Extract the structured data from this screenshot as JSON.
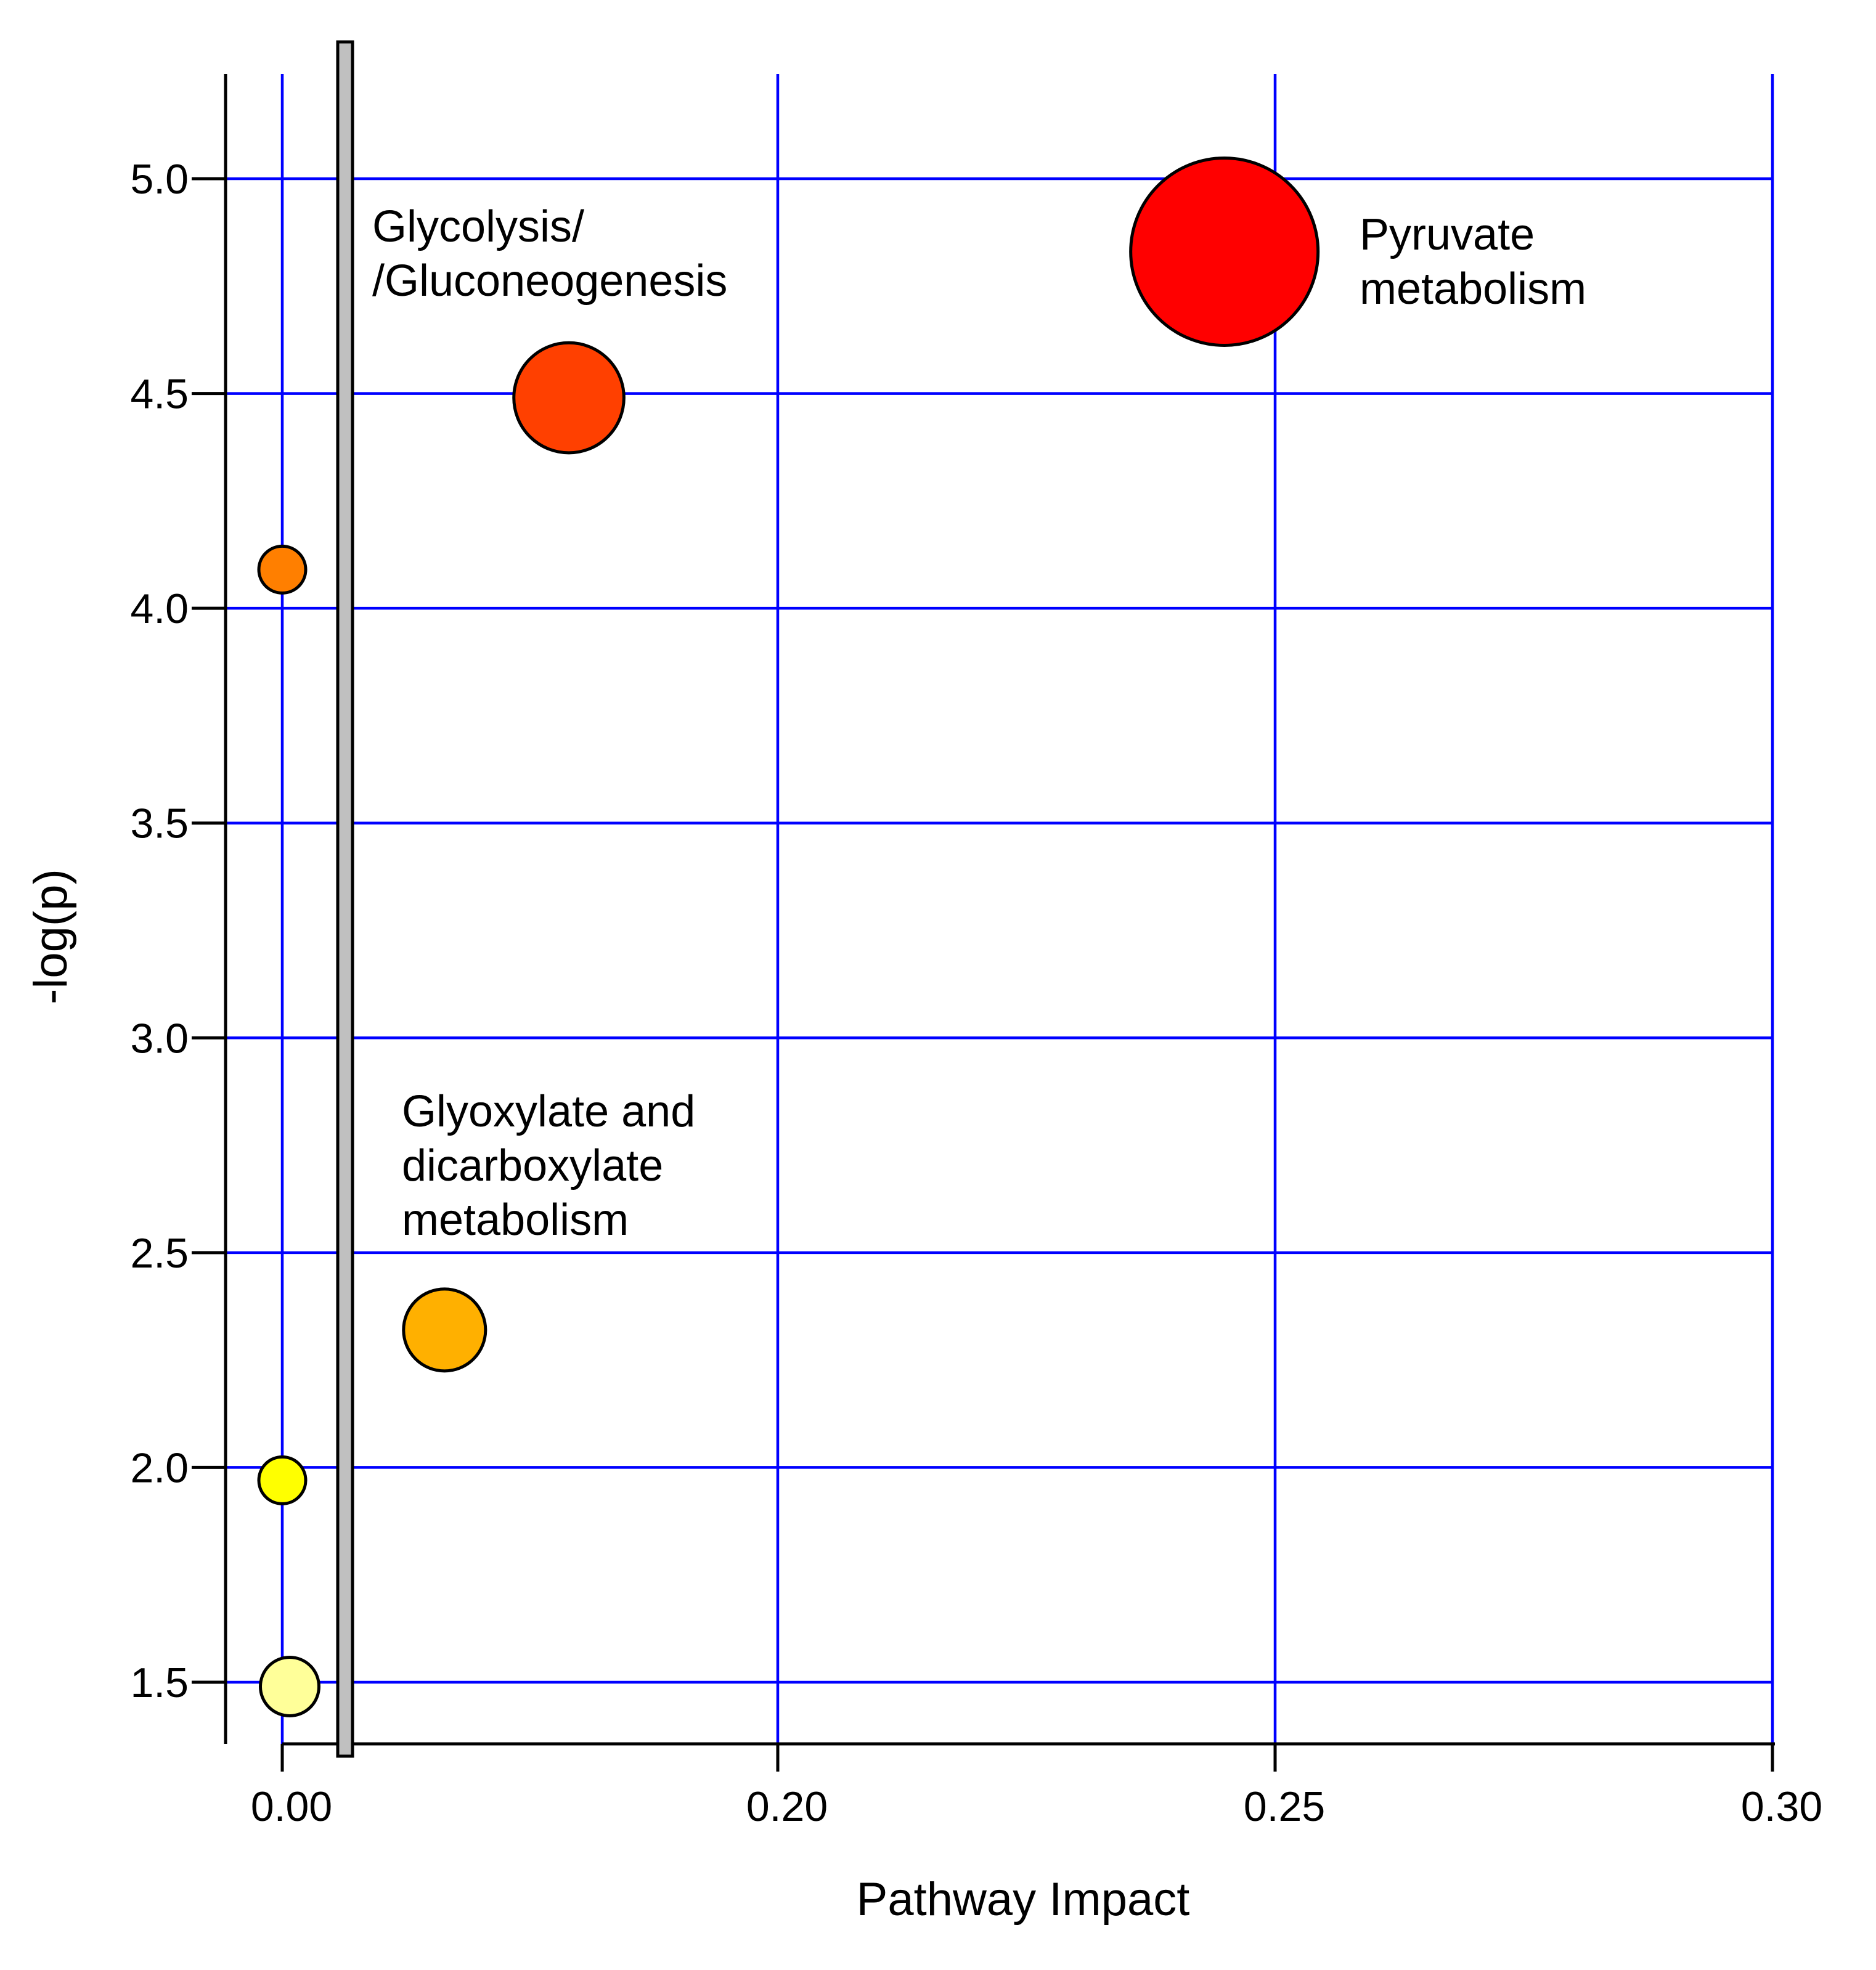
{
  "chart_data": {
    "type": "scatter",
    "xlabel": "Pathway Impact",
    "ylabel": "-log(p)",
    "ylim": [
      1.35,
      5.25
    ],
    "y_ticks": [
      1.5,
      2.0,
      2.5,
      3.0,
      3.5,
      4.0,
      4.5,
      5.0
    ],
    "y_tick_labels": [
      "1.5",
      "2.0",
      "2.5",
      "3.0",
      "3.5",
      "4.0",
      "4.5",
      "5.0"
    ],
    "x_ticks": [
      0.0,
      0.2,
      0.25,
      0.3
    ],
    "x_tick_labels": [
      "0.00",
      "0.20",
      "0.25",
      "0.30"
    ],
    "x_axis_break": "broken axis between 0.00 and 0.20",
    "grid": true,
    "grid_color": "#0000ff",
    "points": [
      {
        "x": 0.0,
        "y": 4.09,
        "size": 1,
        "color": "#ff7f00"
      },
      {
        "x": 0.0,
        "y": 1.97,
        "size": 1,
        "color": "#ffff00"
      },
      {
        "x": 0.0012,
        "y": 1.49,
        "size": 1.25,
        "color": "#ffff99"
      },
      {
        "x": 0.1665,
        "y": 2.32,
        "size": 1.75,
        "color": "#ffb000",
        "label": "Glyoxylate and\ndicarboxylate\nmetabolism"
      },
      {
        "x": 0.179,
        "y": 4.49,
        "size": 2.35,
        "color": "#ff4000",
        "label": "Glycolysis/\n/Gluconeogenesis"
      },
      {
        "x": 0.2449,
        "y": 4.83,
        "size": 4.0,
        "color": "#ff0000",
        "label": "Pyruvate\nmetabolism"
      }
    ],
    "annotations": [
      {
        "lines": [
          "Glycolysis/",
          "/Gluconeogenesis"
        ]
      },
      {
        "lines": [
          "Pyruvate",
          "metabolism"
        ]
      },
      {
        "lines": [
          "Glyoxylate and",
          "dicarboxylate",
          "metabolism"
        ]
      }
    ]
  }
}
